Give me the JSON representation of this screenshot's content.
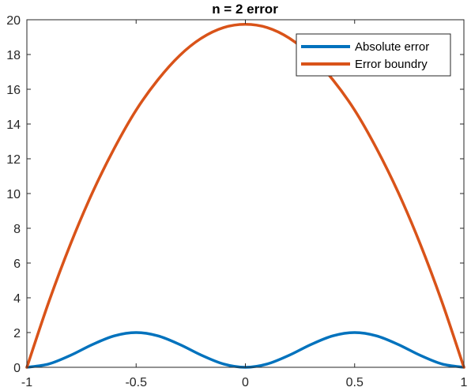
{
  "chart_data": {
    "type": "line",
    "title": "n = 2 error",
    "xlabel": "",
    "ylabel": "",
    "xlim": [
      -1,
      1
    ],
    "ylim": [
      0,
      20
    ],
    "x_ticks": [
      -1,
      -0.5,
      0,
      0.5,
      1
    ],
    "x_tick_labels": [
      "-1",
      "-0.5",
      "0",
      "0.5",
      "1"
    ],
    "y_ticks": [
      0,
      2,
      4,
      6,
      8,
      10,
      12,
      14,
      16,
      18,
      20
    ],
    "y_tick_labels": [
      "0",
      "2",
      "4",
      "6",
      "8",
      "10",
      "12",
      "14",
      "16",
      "18",
      "20"
    ],
    "grid": false,
    "legend_position": "top-right",
    "series": [
      {
        "name": "Absolute error",
        "color": "#0072BD",
        "x": [
          -1,
          -0.9,
          -0.8,
          -0.7,
          -0.6,
          -0.5,
          -0.4,
          -0.3,
          -0.2,
          -0.1,
          0,
          0.1,
          0.2,
          0.3,
          0.4,
          0.5,
          0.6,
          0.7,
          0.8,
          0.9,
          1
        ],
        "y": [
          0,
          0.19,
          0.69,
          1.31,
          1.81,
          2.0,
          1.81,
          1.31,
          0.69,
          0.19,
          0,
          0.19,
          0.69,
          1.31,
          1.81,
          2.0,
          1.81,
          1.31,
          0.69,
          0.19,
          0
        ]
      },
      {
        "name": "Error boundry",
        "color": "#D95319",
        "x": [
          -1,
          -0.9,
          -0.8,
          -0.7,
          -0.6,
          -0.5,
          -0.4,
          -0.3,
          -0.2,
          -0.1,
          0,
          0.1,
          0.2,
          0.3,
          0.4,
          0.5,
          0.6,
          0.7,
          0.8,
          0.9,
          1
        ],
        "y": [
          0,
          3.75,
          7.1,
          10.05,
          12.6,
          14.8,
          16.55,
          17.95,
          18.95,
          19.55,
          19.74,
          19.55,
          18.95,
          17.95,
          16.55,
          14.8,
          12.6,
          10.05,
          7.1,
          3.75,
          0
        ]
      }
    ]
  }
}
